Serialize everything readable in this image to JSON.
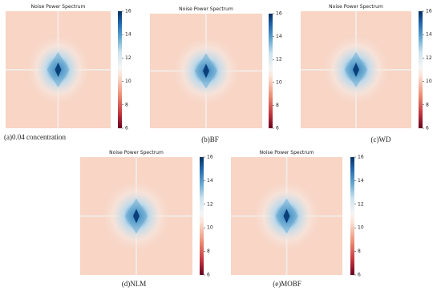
{
  "chart_data": [
    {
      "type": "heatmap",
      "title": "Noise Power Spectrum",
      "caption": "(a)0.04 concentration",
      "colormap": "RdBu",
      "zlim": [
        6,
        16
      ],
      "zticks": [
        6,
        8,
        10,
        12,
        14,
        16
      ]
    },
    {
      "type": "heatmap",
      "title": "Noise Power Spectrum",
      "caption": "(b)BF",
      "colormap": "RdBu",
      "zlim": [
        6,
        16
      ],
      "zticks": [
        6,
        8,
        10,
        12,
        14,
        16
      ]
    },
    {
      "type": "heatmap",
      "title": "Noise Power Spectrum",
      "caption": "(c)WD",
      "colormap": "RdBu",
      "zlim": [
        6,
        16
      ],
      "zticks": [
        6,
        8,
        10,
        12,
        14,
        16
      ]
    },
    {
      "type": "heatmap",
      "title": "Noise Power Spectrum",
      "caption": "(d)NLM",
      "colormap": "RdBu",
      "zlim": [
        6,
        16
      ],
      "zticks": [
        6,
        8,
        10,
        12,
        14,
        16
      ]
    },
    {
      "type": "heatmap",
      "title": "Noise Power Spectrum",
      "caption": "(e)MOBF",
      "colormap": "RdBu",
      "zlim": [
        6,
        16
      ],
      "zticks": [
        6,
        8,
        10,
        12,
        14,
        16
      ]
    }
  ]
}
